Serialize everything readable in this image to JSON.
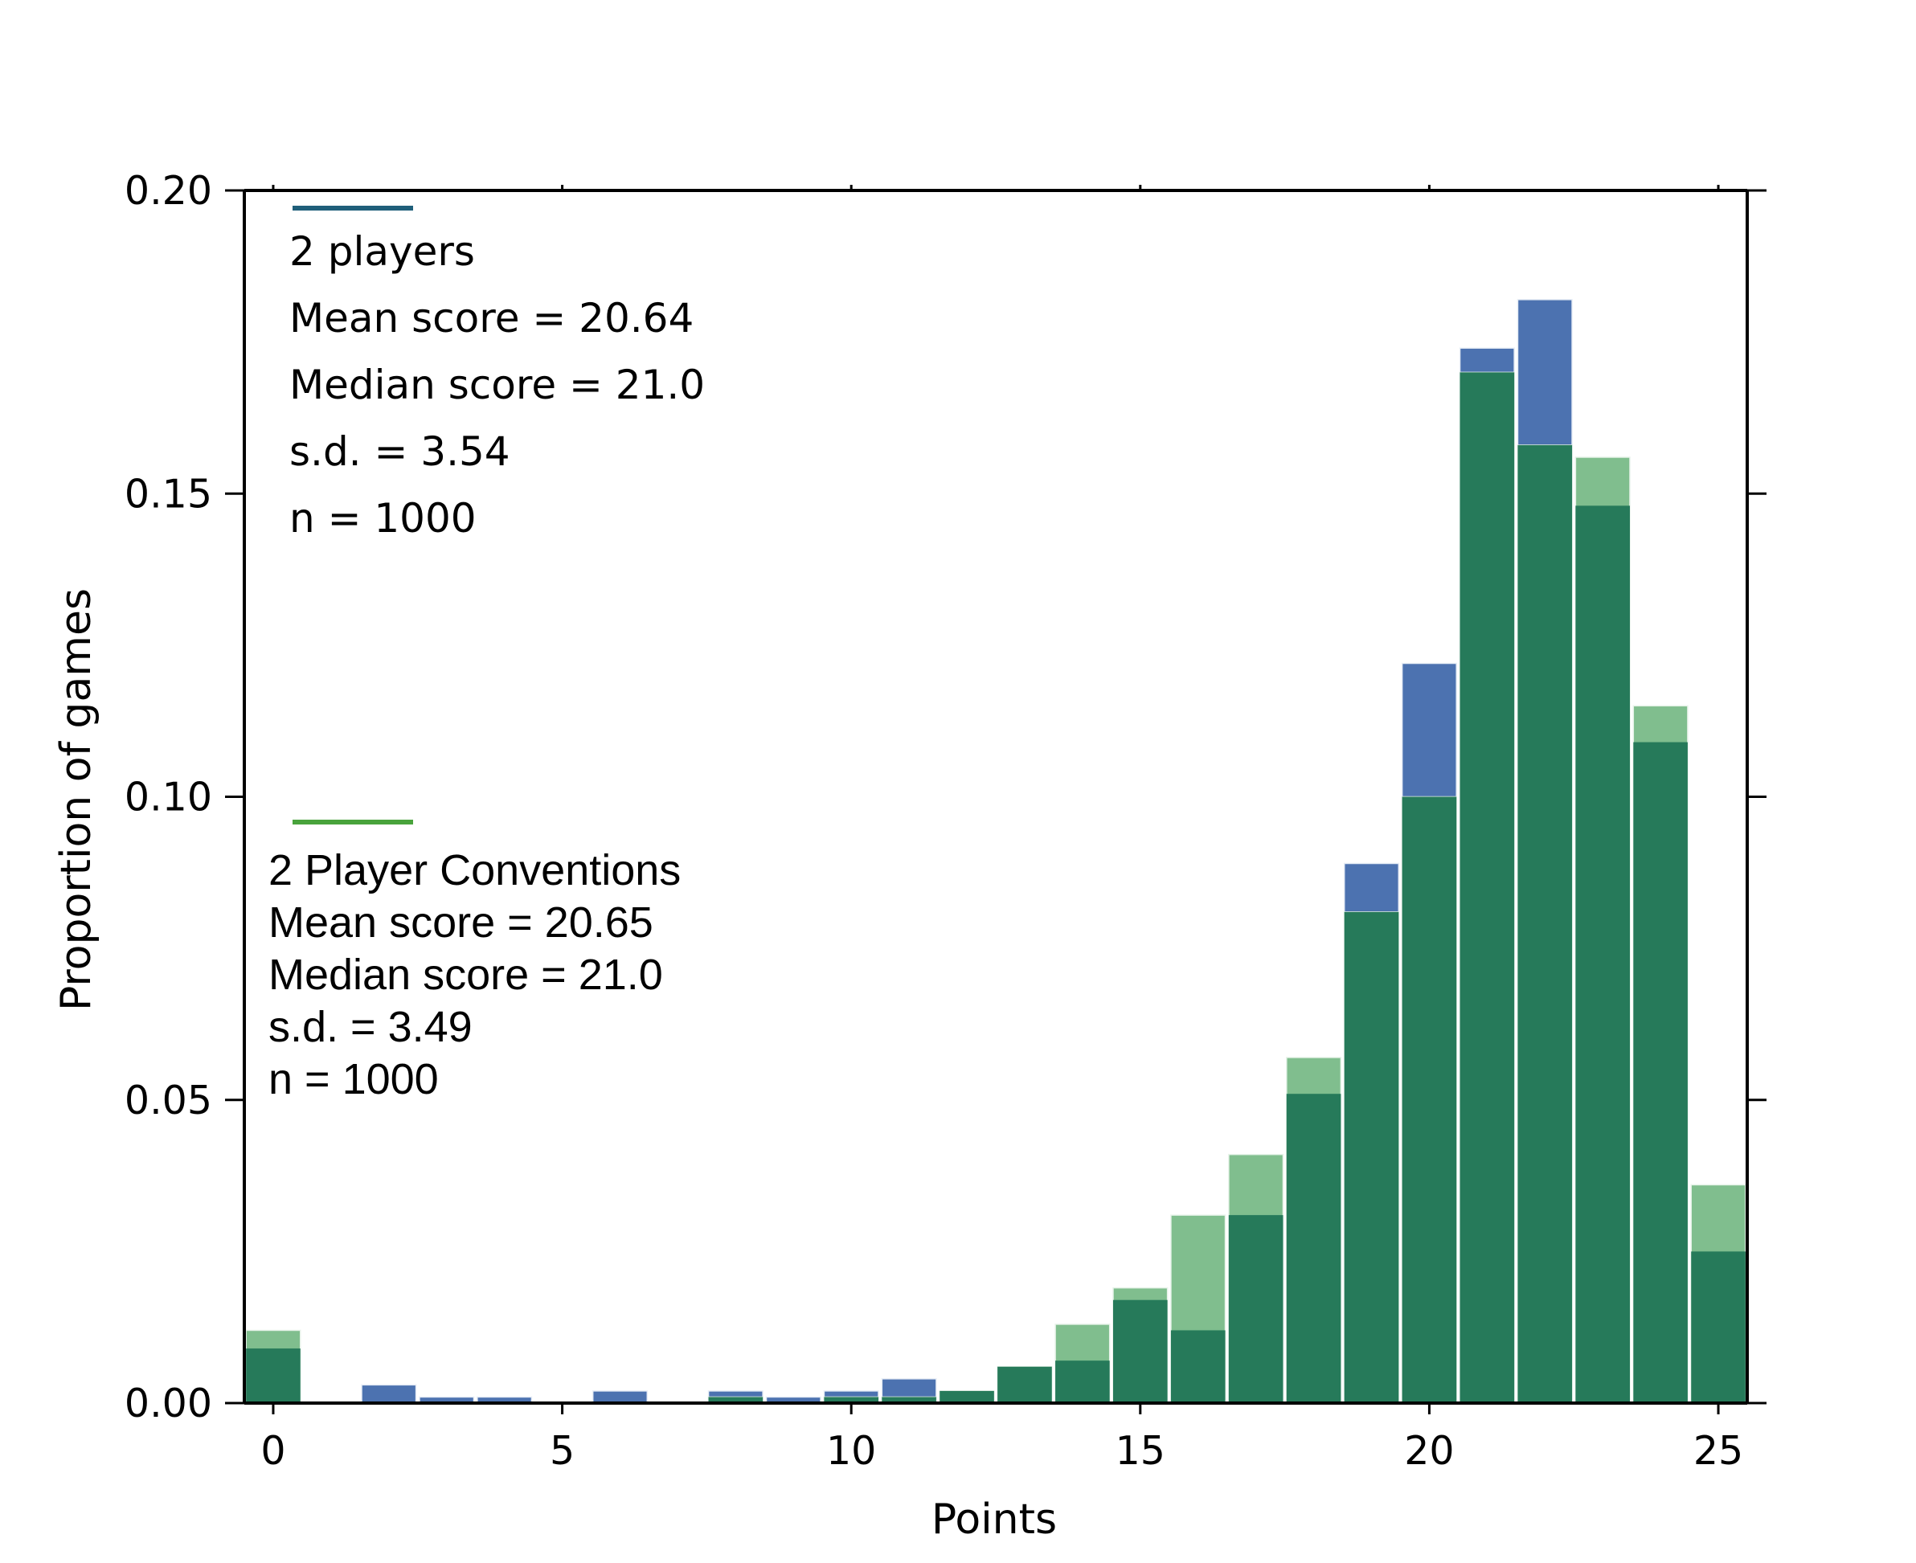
{
  "colors": {
    "series_2_players": "#4c72b0",
    "series_conventions": "#55a868",
    "overlap": "#267a5a",
    "legend_line_2_players": "#1f5f7a",
    "legend_line_conventions": "#49a33c"
  },
  "chart_data": {
    "type": "bar",
    "xlabel": "Points",
    "ylabel": "Proportion of games",
    "xlim": [
      -0.5,
      25.5
    ],
    "ylim": [
      0,
      0.2
    ],
    "x_ticks": [
      "0",
      "5",
      "10",
      "15",
      "20",
      "25"
    ],
    "y_ticks": [
      "0.00",
      "0.05",
      "0.10",
      "0.15",
      "0.20"
    ],
    "x": [
      0,
      1,
      2,
      3,
      4,
      5,
      6,
      7,
      8,
      9,
      10,
      11,
      12,
      13,
      14,
      15,
      16,
      17,
      18,
      19,
      20,
      21,
      22,
      23,
      24,
      25
    ],
    "series": [
      {
        "name": "2 players",
        "values": [
          0.009,
          0,
          0.003,
          0.001,
          0.001,
          0,
          0.002,
          0,
          0.002,
          0.001,
          0.002,
          0.004,
          0.002,
          0.006,
          0.007,
          0.017,
          0.012,
          0.031,
          0.051,
          0.089,
          0.122,
          0.174,
          0.182,
          0.148,
          0.109,
          0.025
        ],
        "stats": [
          "2 players",
          "Mean score = 20.64",
          "Median score = 21.0",
          "s.d. = 3.54",
          "n = 1000"
        ]
      },
      {
        "name": "2 Player Conventions",
        "values": [
          0.012,
          0,
          0,
          0,
          0,
          0,
          0,
          0,
          0.001,
          0,
          0.001,
          0.001,
          0.002,
          0.006,
          0.013,
          0.019,
          0.031,
          0.041,
          0.057,
          0.081,
          0.1,
          0.17,
          0.158,
          0.156,
          0.115,
          0.036
        ],
        "stats": [
          "2 Player Conventions",
          "Mean score = 20.65",
          "Median score = 21.0",
          "s.d. =  3.49",
          "n = 1000"
        ]
      }
    ]
  }
}
